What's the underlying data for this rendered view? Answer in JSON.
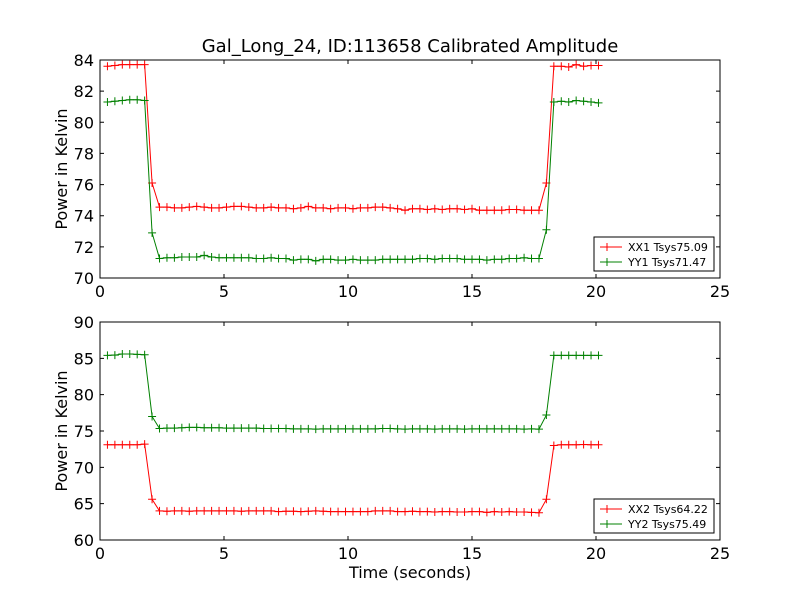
{
  "title": "Gal_Long_24, ID:113658 Calibrated Amplitude",
  "chart_data": [
    {
      "type": "line",
      "ylabel": "Power in Kelvin",
      "xlabel": "",
      "xlim": [
        0,
        25
      ],
      "ylim": [
        70,
        84
      ],
      "xticks": [
        0,
        5,
        10,
        15,
        20,
        25
      ],
      "yticks": [
        70,
        72,
        74,
        76,
        78,
        80,
        82,
        84
      ],
      "legend_position": "lower-right",
      "x": [
        0.3,
        0.6,
        0.9,
        1.2,
        1.5,
        1.8,
        2.1,
        2.4,
        2.7,
        3.0,
        3.3,
        3.6,
        3.9,
        4.2,
        4.5,
        4.8,
        5.1,
        5.4,
        5.7,
        6.0,
        6.3,
        6.6,
        6.9,
        7.2,
        7.5,
        7.8,
        8.1,
        8.4,
        8.7,
        9.0,
        9.3,
        9.6,
        9.9,
        10.2,
        10.5,
        10.8,
        11.1,
        11.4,
        11.7,
        12.0,
        12.3,
        12.6,
        12.9,
        13.2,
        13.5,
        13.8,
        14.1,
        14.4,
        14.7,
        15.0,
        15.3,
        15.6,
        15.9,
        16.2,
        16.5,
        16.8,
        17.1,
        17.4,
        17.7,
        18.0,
        18.3,
        18.6,
        18.9,
        19.2,
        19.5,
        19.8,
        20.1
      ],
      "series": [
        {
          "name": "XX1 Tsys75.09",
          "color": "#ff0000",
          "values": [
            83.6,
            83.65,
            83.7,
            83.7,
            83.7,
            83.7,
            76.1,
            74.55,
            74.55,
            74.5,
            74.5,
            74.55,
            74.6,
            74.55,
            74.5,
            74.5,
            74.55,
            74.6,
            74.6,
            74.55,
            74.5,
            74.5,
            74.55,
            74.5,
            74.5,
            74.45,
            74.5,
            74.6,
            74.5,
            74.5,
            74.45,
            74.5,
            74.5,
            74.45,
            74.5,
            74.5,
            74.55,
            74.55,
            74.5,
            74.45,
            74.35,
            74.45,
            74.45,
            74.4,
            74.45,
            74.4,
            74.45,
            74.45,
            74.4,
            74.45,
            74.35,
            74.35,
            74.35,
            74.35,
            74.4,
            74.4,
            74.35,
            74.35,
            74.35,
            76.1,
            83.6,
            83.6,
            83.55,
            83.7,
            83.6,
            83.65,
            83.65
          ]
        },
        {
          "name": "YY1 Tsys71.47",
          "color": "#008000",
          "values": [
            81.3,
            81.35,
            81.4,
            81.45,
            81.45,
            81.4,
            72.9,
            71.25,
            71.3,
            71.3,
            71.35,
            71.35,
            71.35,
            71.45,
            71.35,
            71.3,
            71.3,
            71.3,
            71.3,
            71.3,
            71.25,
            71.25,
            71.3,
            71.25,
            71.25,
            71.15,
            71.2,
            71.2,
            71.1,
            71.2,
            71.2,
            71.15,
            71.15,
            71.2,
            71.15,
            71.15,
            71.15,
            71.2,
            71.2,
            71.2,
            71.2,
            71.2,
            71.25,
            71.25,
            71.2,
            71.25,
            71.25,
            71.25,
            71.2,
            71.2,
            71.2,
            71.15,
            71.2,
            71.2,
            71.25,
            71.25,
            71.3,
            71.25,
            71.25,
            73.1,
            81.3,
            81.35,
            81.3,
            81.4,
            81.35,
            81.3,
            81.25
          ]
        }
      ]
    },
    {
      "type": "line",
      "ylabel": "Power in Kelvin",
      "xlabel": "Time (seconds)",
      "xlim": [
        0,
        25
      ],
      "ylim": [
        60,
        90
      ],
      "xticks": [
        0,
        5,
        10,
        15,
        20,
        25
      ],
      "yticks": [
        60,
        65,
        70,
        75,
        80,
        85,
        90
      ],
      "legend_position": "lower-right",
      "x": [
        0.3,
        0.6,
        0.9,
        1.2,
        1.5,
        1.8,
        2.1,
        2.4,
        2.7,
        3.0,
        3.3,
        3.6,
        3.9,
        4.2,
        4.5,
        4.8,
        5.1,
        5.4,
        5.7,
        6.0,
        6.3,
        6.6,
        6.9,
        7.2,
        7.5,
        7.8,
        8.1,
        8.4,
        8.7,
        9.0,
        9.3,
        9.6,
        9.9,
        10.2,
        10.5,
        10.8,
        11.1,
        11.4,
        11.7,
        12.0,
        12.3,
        12.6,
        12.9,
        13.2,
        13.5,
        13.8,
        14.1,
        14.4,
        14.7,
        15.0,
        15.3,
        15.6,
        15.9,
        16.2,
        16.5,
        16.8,
        17.1,
        17.4,
        17.7,
        18.0,
        18.3,
        18.6,
        18.9,
        19.2,
        19.5,
        19.8,
        20.1
      ],
      "series": [
        {
          "name": "XX2 Tsys64.22",
          "color": "#ff0000",
          "values": [
            73.1,
            73.1,
            73.1,
            73.1,
            73.1,
            73.2,
            65.6,
            64.0,
            63.95,
            64.0,
            64.0,
            63.95,
            64.0,
            64.0,
            64.0,
            64.0,
            64.0,
            64.0,
            63.95,
            64.0,
            64.0,
            64.0,
            64.0,
            63.9,
            63.95,
            63.95,
            63.9,
            63.95,
            64.0,
            63.95,
            63.9,
            63.9,
            63.9,
            63.9,
            63.9,
            63.9,
            64.0,
            64.0,
            64.0,
            63.9,
            63.9,
            63.95,
            63.9,
            63.9,
            63.85,
            63.9,
            63.9,
            63.85,
            63.85,
            63.9,
            63.9,
            63.8,
            63.9,
            63.85,
            63.9,
            63.85,
            63.85,
            63.8,
            63.75,
            65.6,
            73.0,
            73.1,
            73.1,
            73.1,
            73.15,
            73.1,
            73.1
          ]
        },
        {
          "name": "YY2 Tsys75.49",
          "color": "#008000",
          "values": [
            85.4,
            85.45,
            85.6,
            85.6,
            85.55,
            85.5,
            77.0,
            75.35,
            75.4,
            75.4,
            75.45,
            75.5,
            75.5,
            75.45,
            75.45,
            75.45,
            75.4,
            75.4,
            75.4,
            75.4,
            75.4,
            75.35,
            75.35,
            75.35,
            75.35,
            75.3,
            75.3,
            75.3,
            75.25,
            75.3,
            75.3,
            75.3,
            75.3,
            75.3,
            75.3,
            75.3,
            75.3,
            75.35,
            75.35,
            75.3,
            75.25,
            75.3,
            75.3,
            75.3,
            75.25,
            75.3,
            75.3,
            75.3,
            75.25,
            75.3,
            75.3,
            75.3,
            75.3,
            75.3,
            75.3,
            75.3,
            75.25,
            75.3,
            75.25,
            77.2,
            85.4,
            85.4,
            85.4,
            85.4,
            85.4,
            85.4,
            85.4
          ]
        }
      ]
    }
  ]
}
